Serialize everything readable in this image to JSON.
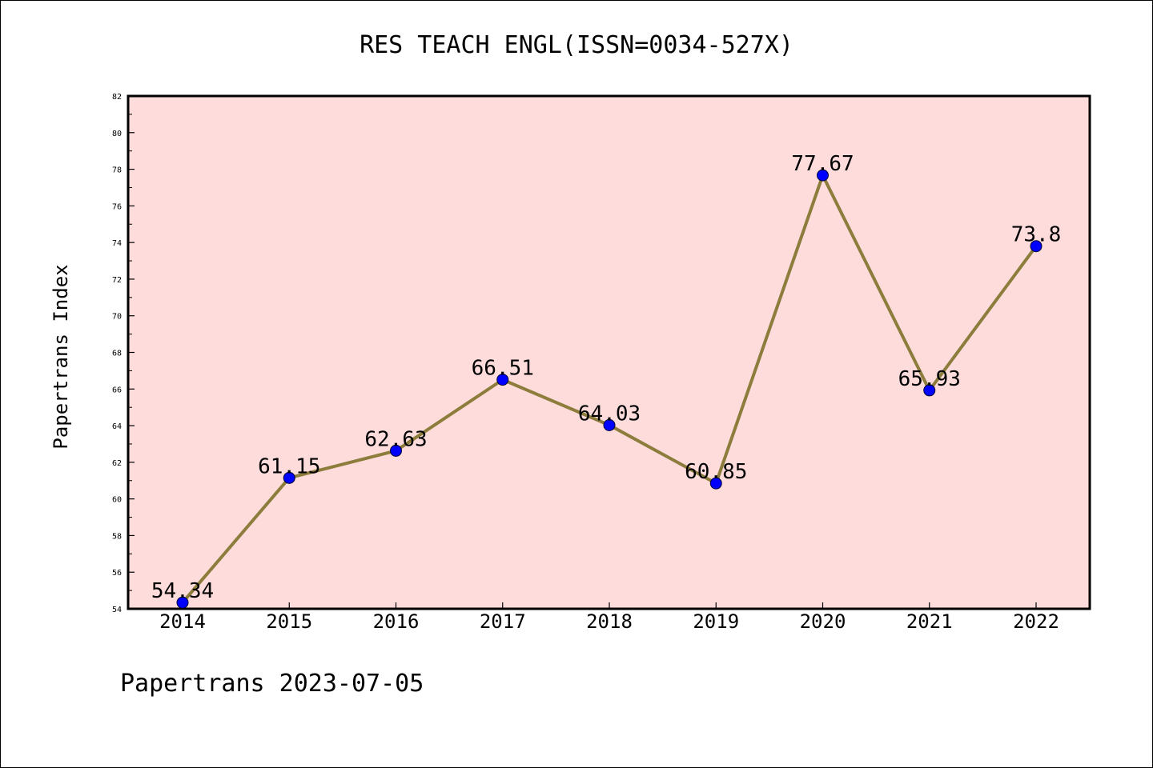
{
  "chart_data": {
    "type": "line",
    "title": "RES TEACH ENGL(ISSN=0034-527X)",
    "ylabel": "Papertrans Index",
    "xlabel": "",
    "footer": "Papertrans 2023-07-05",
    "categories": [
      "2014",
      "2015",
      "2016",
      "2017",
      "2018",
      "2019",
      "2020",
      "2021",
      "2022"
    ],
    "values": [
      54.34,
      61.15,
      62.63,
      66.51,
      64.03,
      60.85,
      77.67,
      65.93,
      73.8
    ],
    "data_labels": [
      "54.34",
      "61.15",
      "62.63",
      "66.51",
      "64.03",
      "60.85",
      "77.67",
      "65.93",
      "73.8"
    ],
    "ylim": [
      54,
      82
    ],
    "yticks": [
      54,
      56,
      58,
      60,
      62,
      64,
      66,
      68,
      70,
      72,
      74,
      76,
      78,
      80,
      82
    ],
    "grid": false,
    "colors": {
      "plot_background": "#ffdcdc",
      "line": "#8c7d3c",
      "marker": "#0000ff"
    }
  }
}
